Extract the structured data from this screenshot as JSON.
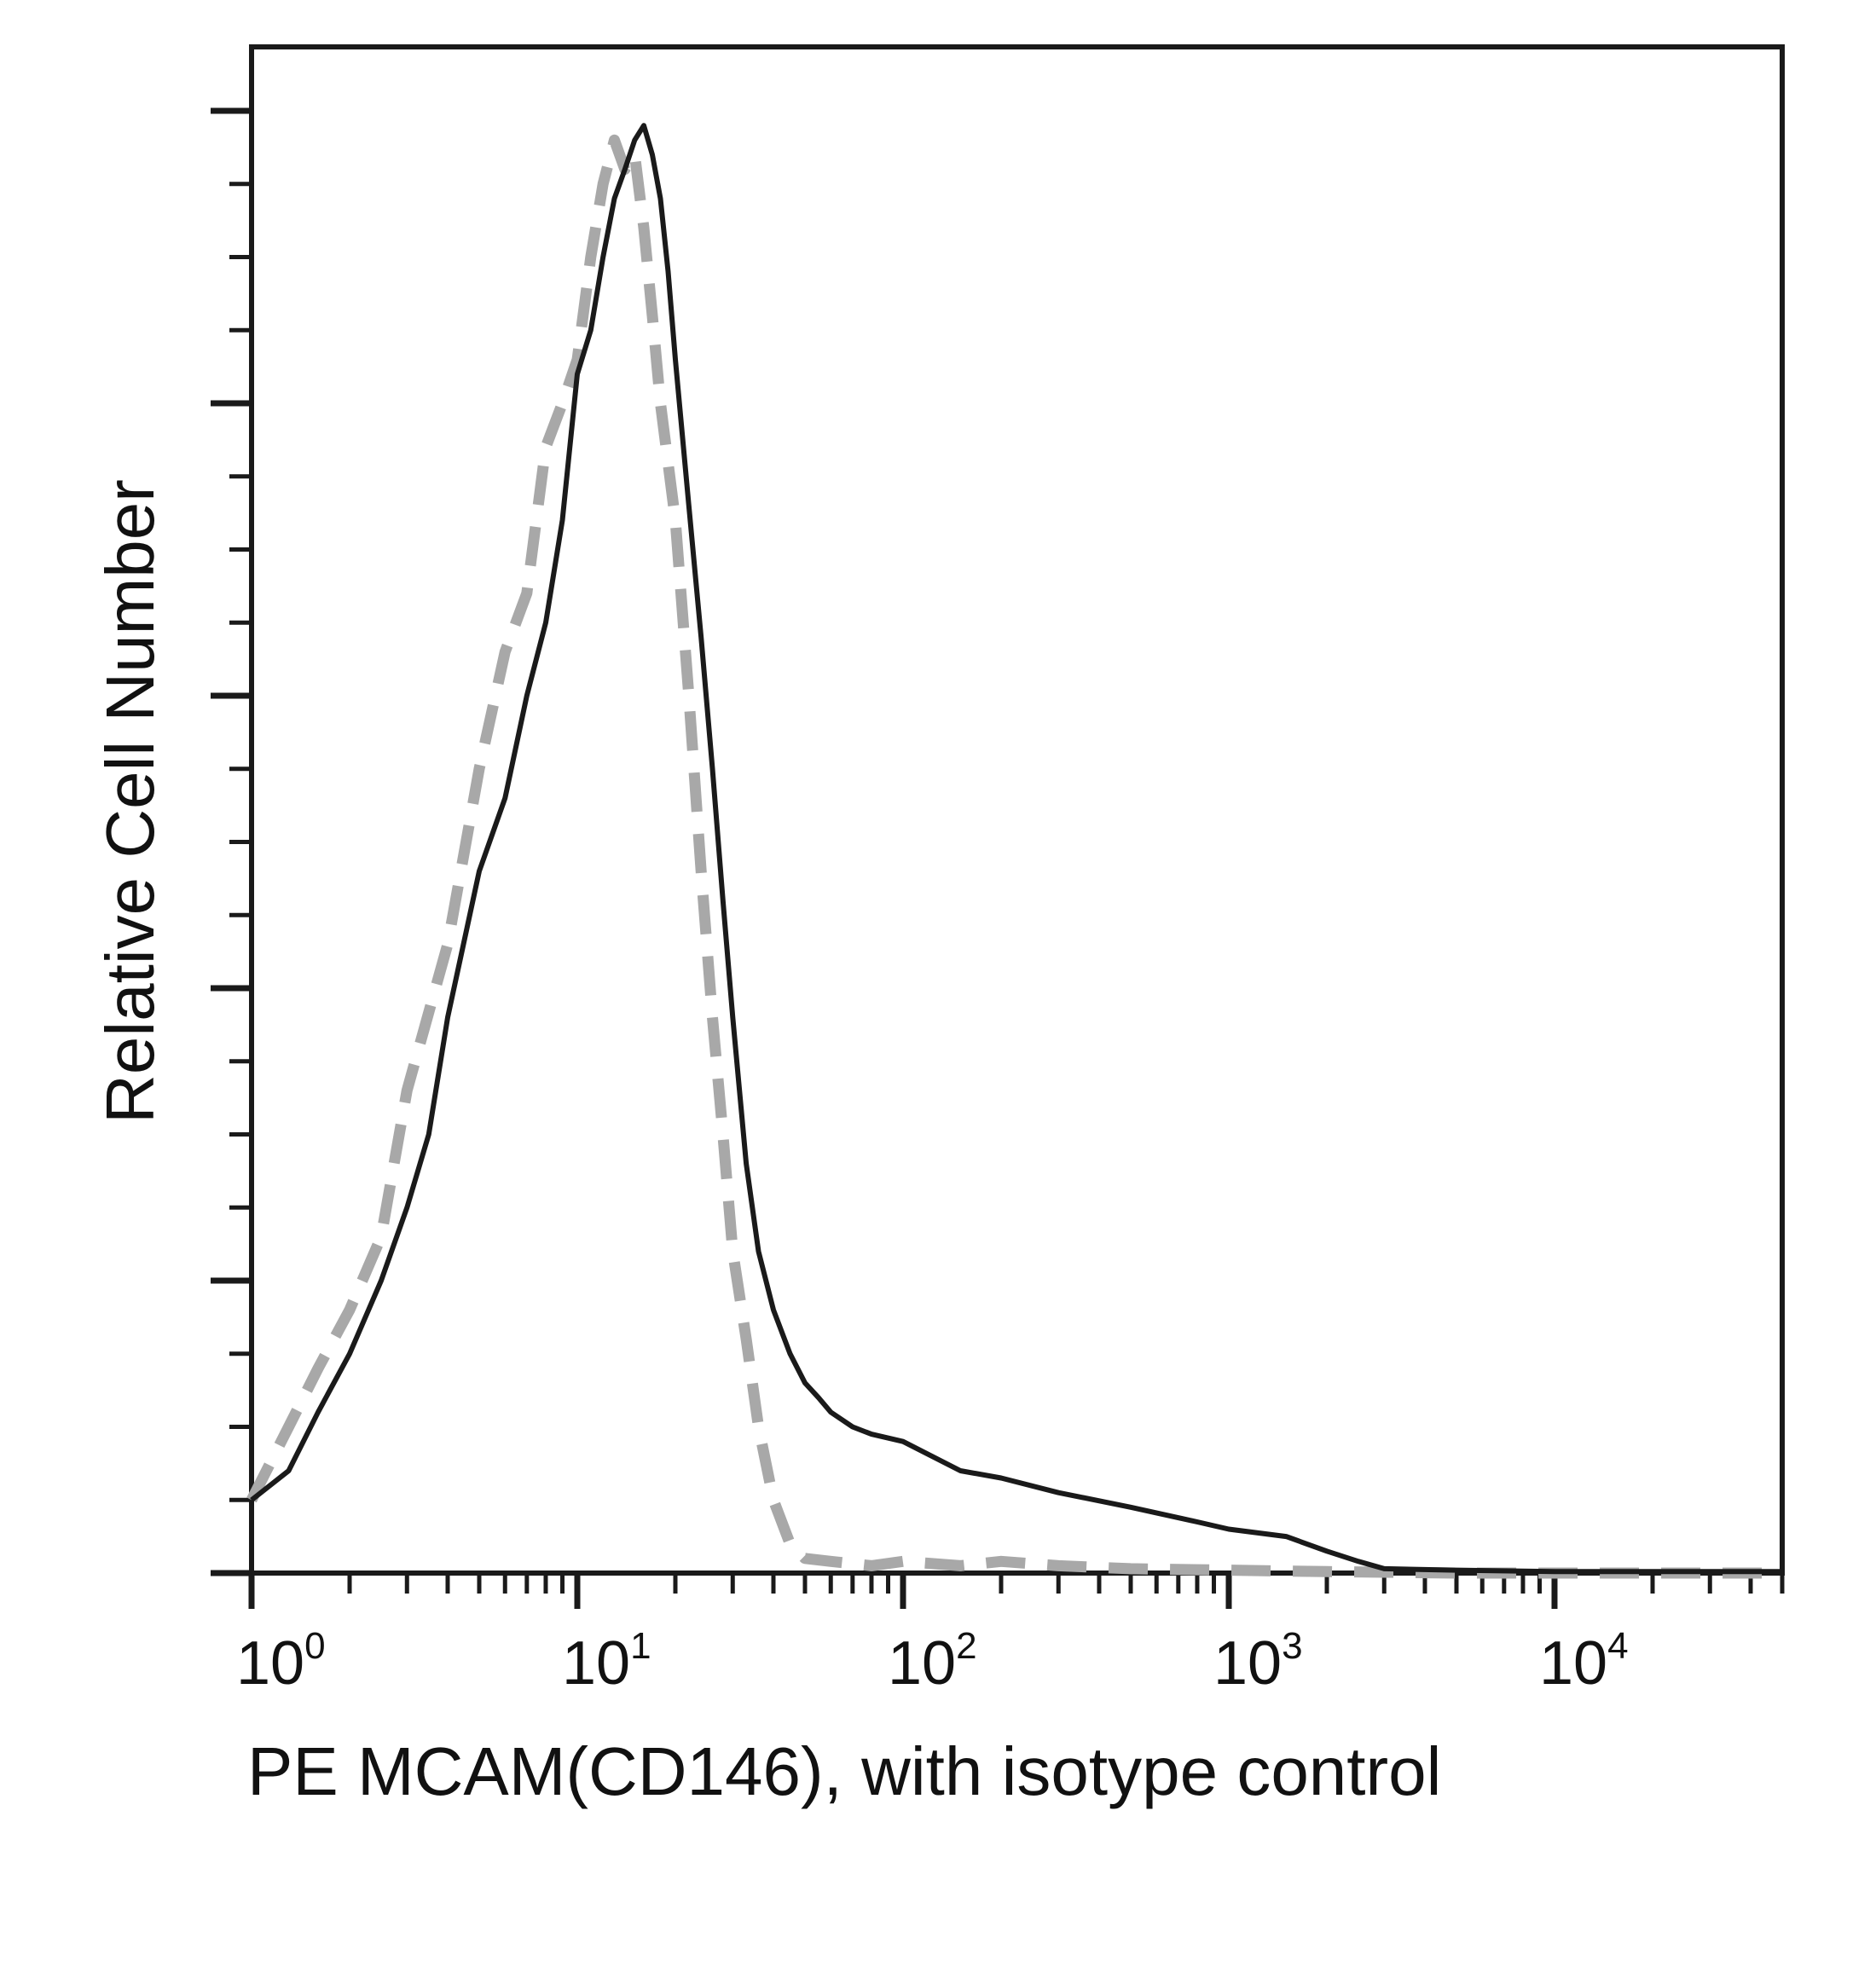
{
  "chart_data": {
    "type": "line",
    "title": "",
    "xlabel": "PE  MCAM(CD146), with isotype control",
    "ylabel": "Relative Cell Number",
    "x_scale": "log",
    "xlim": [
      1,
      50000
    ],
    "ylim": [
      0,
      100
    ],
    "grid": false,
    "legend": "none",
    "x_ticks": [
      {
        "base": "10",
        "exp": "0",
        "value": 1
      },
      {
        "base": "10",
        "exp": "1",
        "value": 10
      },
      {
        "base": "10",
        "exp": "2",
        "value": 100
      },
      {
        "base": "10",
        "exp": "3",
        "value": 1000
      },
      {
        "base": "10",
        "exp": "4",
        "value": 10000
      }
    ],
    "y_ticks": [
      0,
      20,
      40,
      60,
      80,
      100
    ],
    "series": [
      {
        "style": "dashed",
        "color": "#a8a8a8",
        "x": [
          1,
          1.3,
          1.6,
          2,
          2.5,
          3,
          4,
          5,
          6,
          7,
          8,
          9,
          10,
          11,
          12,
          13,
          14,
          15,
          16,
          17,
          18,
          20,
          22,
          24,
          26,
          28,
          30,
          33,
          36,
          40,
          45,
          50,
          60,
          80,
          100,
          150,
          200,
          300,
          500,
          1000,
          2000,
          5000,
          10000,
          50000
        ],
        "values": [
          5,
          10,
          14,
          18,
          23,
          33,
          43,
          55,
          63,
          67,
          77,
          80,
          83,
          90,
          95,
          98,
          96,
          97,
          92,
          86,
          80,
          72,
          60,
          48,
          38,
          30,
          22,
          16,
          10,
          5,
          2,
          1,
          0.8,
          0.5,
          0.8,
          0.5,
          0.8,
          0.5,
          0.3,
          0.2,
          0.1,
          0,
          0,
          0
        ]
      },
      {
        "style": "solid",
        "color": "#1a1a1a",
        "x": [
          1,
          1.3,
          1.6,
          2,
          2.5,
          3,
          3.5,
          4,
          5,
          6,
          7,
          8,
          9,
          10,
          11,
          12,
          13,
          14,
          15,
          16,
          17,
          18,
          19,
          20,
          22,
          24,
          26,
          28,
          30,
          33,
          36,
          40,
          45,
          50,
          55,
          60,
          70,
          80,
          100,
          150,
          200,
          300,
          500,
          800,
          1000,
          1500,
          2000,
          2500,
          3000,
          5000,
          10000,
          50000
        ],
        "values": [
          5,
          7,
          11,
          15,
          20,
          25,
          30,
          38,
          48,
          53,
          60,
          65,
          72,
          82,
          85,
          90,
          94,
          96,
          98,
          99,
          97,
          94,
          89,
          83,
          73,
          64,
          55,
          46,
          38,
          28,
          22,
          18,
          15,
          13,
          12,
          11,
          10,
          9.5,
          9,
          7,
          6.5,
          5.5,
          4.5,
          3.5,
          3,
          2.5,
          1.5,
          0.8,
          0.3,
          0.2,
          0.1,
          0.1
        ]
      }
    ]
  }
}
